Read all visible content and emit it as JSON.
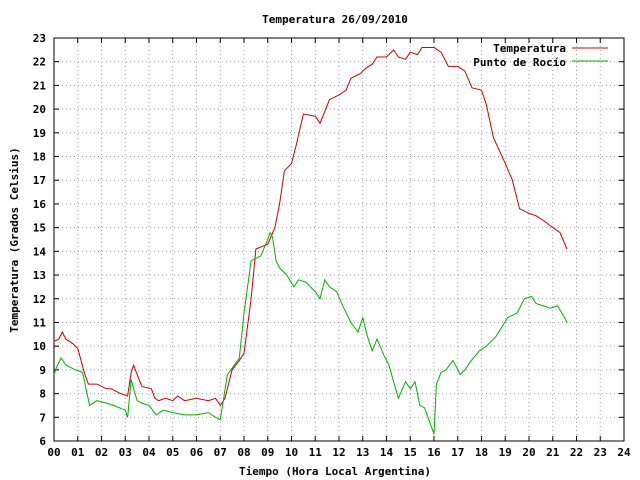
{
  "chart_data": {
    "type": "line",
    "title": "Temperatura 26/09/2010",
    "xlabel": "Tiempo (Hora Local Argentina)",
    "ylabel": "Temperatura (Grados Celsius)",
    "xlim": [
      0,
      24
    ],
    "ylim": [
      6,
      23
    ],
    "x_ticks": [
      "00",
      "01",
      "02",
      "03",
      "04",
      "05",
      "06",
      "07",
      "08",
      "09",
      "10",
      "11",
      "12",
      "13",
      "14",
      "15",
      "16",
      "17",
      "18",
      "19",
      "20",
      "21",
      "22",
      "23",
      "24"
    ],
    "y_ticks": [
      6,
      7,
      8,
      9,
      10,
      11,
      12,
      13,
      14,
      15,
      16,
      17,
      18,
      19,
      20,
      21,
      22,
      23
    ],
    "grid": true,
    "legend_position": "top-right",
    "series": [
      {
        "name": "Temperatura",
        "color": "#cc0000",
        "x": [
          0.0,
          0.2,
          0.35,
          0.5,
          0.8,
          1.0,
          1.3,
          1.45,
          1.8,
          2.2,
          2.4,
          2.8,
          3.1,
          3.25,
          3.35,
          3.5,
          3.7,
          4.1,
          4.25,
          4.4,
          4.7,
          5.0,
          5.2,
          5.5,
          6.0,
          6.5,
          6.8,
          7.0,
          7.2,
          7.5,
          7.8,
          8.0,
          8.3,
          8.5,
          9.0,
          9.3,
          9.5,
          9.7,
          10.0,
          10.2,
          10.5,
          11.0,
          11.2,
          11.4,
          11.6,
          12.0,
          12.3,
          12.5,
          12.9,
          13.1,
          13.4,
          13.6,
          14.0,
          14.3,
          14.5,
          14.8,
          15.0,
          15.3,
          15.5,
          16.0,
          16.3,
          16.6,
          17.0,
          17.3,
          17.6,
          18.0,
          18.2,
          18.5,
          19.0,
          19.3,
          19.6,
          20.0,
          20.3,
          20.6,
          21.0,
          21.3,
          21.6
        ],
        "y": [
          10.2,
          10.3,
          10.6,
          10.3,
          10.1,
          9.9,
          8.8,
          8.4,
          8.4,
          8.2,
          8.2,
          8.0,
          7.9,
          8.9,
          9.2,
          8.8,
          8.3,
          8.2,
          7.8,
          7.7,
          7.8,
          7.7,
          7.9,
          7.7,
          7.8,
          7.7,
          7.8,
          7.5,
          7.8,
          9.0,
          9.4,
          9.7,
          12.0,
          14.1,
          14.3,
          15.0,
          16.0,
          17.4,
          17.7,
          18.5,
          19.8,
          19.7,
          19.4,
          19.9,
          20.4,
          20.6,
          20.8,
          21.3,
          21.5,
          21.7,
          21.9,
          22.2,
          22.2,
          22.5,
          22.2,
          22.1,
          22.4,
          22.3,
          22.6,
          22.6,
          22.4,
          21.8,
          21.8,
          21.6,
          20.9,
          20.8,
          20.2,
          18.8,
          17.7,
          17.0,
          15.8,
          15.6,
          15.5,
          15.3,
          15.0,
          14.8,
          14.1
        ]
      },
      {
        "name": "Punto de Rocío",
        "color": "#00b000",
        "x": [
          0.0,
          0.1,
          0.3,
          0.5,
          0.9,
          1.2,
          1.5,
          1.8,
          2.2,
          2.5,
          3.0,
          3.1,
          3.25,
          3.35,
          3.5,
          3.7,
          4.0,
          4.3,
          4.6,
          5.0,
          5.5,
          6.0,
          6.5,
          6.8,
          7.0,
          7.3,
          7.6,
          7.8,
          8.0,
          8.3,
          8.7,
          9.0,
          9.1,
          9.2,
          9.35,
          9.5,
          9.8,
          10.1,
          10.3,
          10.6,
          11.0,
          11.2,
          11.4,
          11.6,
          11.9,
          12.2,
          12.5,
          12.8,
          13.0,
          13.2,
          13.4,
          13.6,
          13.9,
          14.1,
          14.3,
          14.5,
          14.8,
          15.0,
          15.2,
          15.4,
          15.6,
          16.0,
          16.1,
          16.3,
          16.5,
          16.8,
          17.1,
          17.3,
          17.5,
          17.9,
          18.2,
          18.6,
          19.1,
          19.5,
          19.8,
          20.1,
          20.3,
          20.6,
          20.9,
          21.2,
          21.5,
          21.6
        ],
        "y": [
          8.8,
          9.1,
          9.5,
          9.2,
          9.0,
          8.9,
          7.5,
          7.7,
          7.6,
          7.5,
          7.3,
          7.0,
          8.6,
          8.2,
          7.7,
          7.6,
          7.5,
          7.1,
          7.3,
          7.2,
          7.1,
          7.1,
          7.2,
          7.0,
          6.9,
          8.8,
          9.2,
          9.5,
          11.4,
          13.6,
          13.8,
          14.5,
          14.8,
          14.6,
          13.6,
          13.3,
          13.0,
          12.5,
          12.8,
          12.7,
          12.3,
          12.0,
          12.8,
          12.5,
          12.3,
          11.6,
          11.0,
          10.6,
          11.2,
          10.4,
          9.8,
          10.3,
          9.6,
          9.2,
          8.5,
          7.8,
          8.5,
          8.2,
          8.5,
          7.5,
          7.4,
          6.3,
          8.4,
          8.9,
          9.0,
          9.4,
          8.8,
          9.0,
          9.3,
          9.8,
          10.0,
          10.4,
          11.2,
          11.4,
          12.0,
          12.1,
          11.8,
          11.7,
          11.6,
          11.7,
          11.2,
          11.0
        ]
      }
    ]
  }
}
